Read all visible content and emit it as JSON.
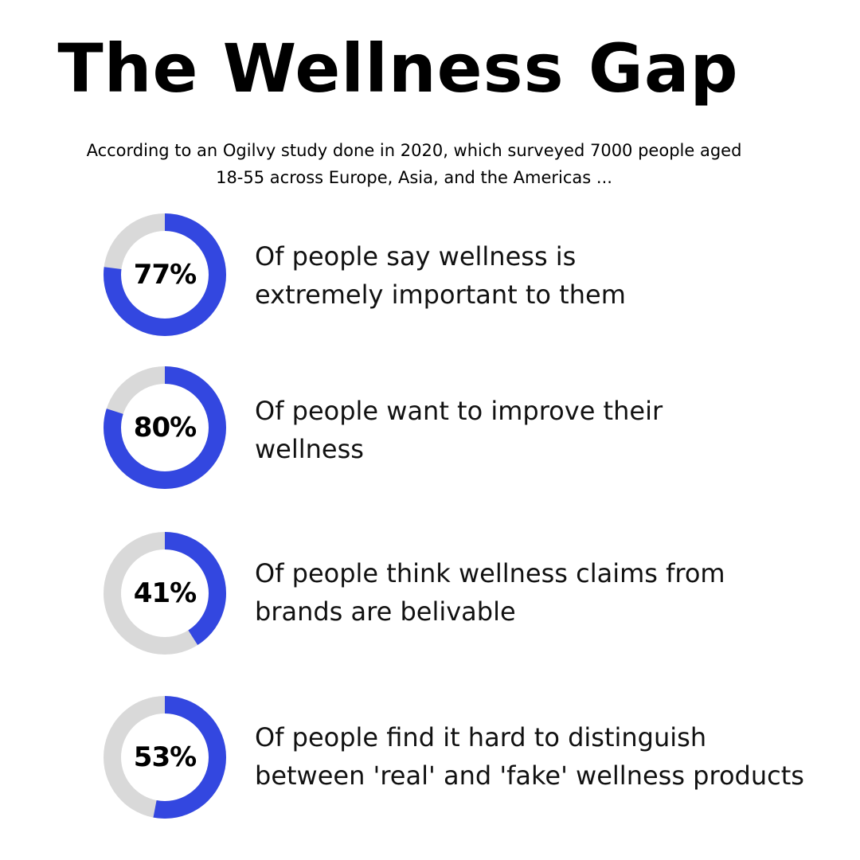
{
  "title": "The Wellness Gap",
  "intro": "According to an Ogilvy study done in 2020, which  surveyed 7000 people aged\n18-55 across Europe, Asia, and the Americas ...",
  "colors": {
    "accent": "#3347e0",
    "track": "#d9d9d9",
    "background": "#ffffff",
    "text": "#000000"
  },
  "stats": [
    {
      "label": "77%",
      "text": "Of people say wellness is\nextremely important to them"
    },
    {
      "label": "80%",
      "text": "Of people want to improve their\nwellness"
    },
    {
      "label": "41%",
      "text": "Of people think wellness claims from\nbrands are belivable"
    },
    {
      "label": "53%",
      "text": "Of people find it hard to distinguish\nbetween 'real' and 'fake' wellness products"
    }
  ],
  "chart_data": {
    "type": "pie",
    "values": [
      77,
      80,
      41,
      53
    ],
    "categories": [
      "Of people say wellness is extremely important to them",
      "Of people want to improve their wellness",
      "Of people think wellness claims from brands are belivable",
      "Of people find it hard to distinguish between 'real' and 'fake' wellness products"
    ],
    "unit": "%",
    "ylim": [
      0,
      100
    ]
  }
}
